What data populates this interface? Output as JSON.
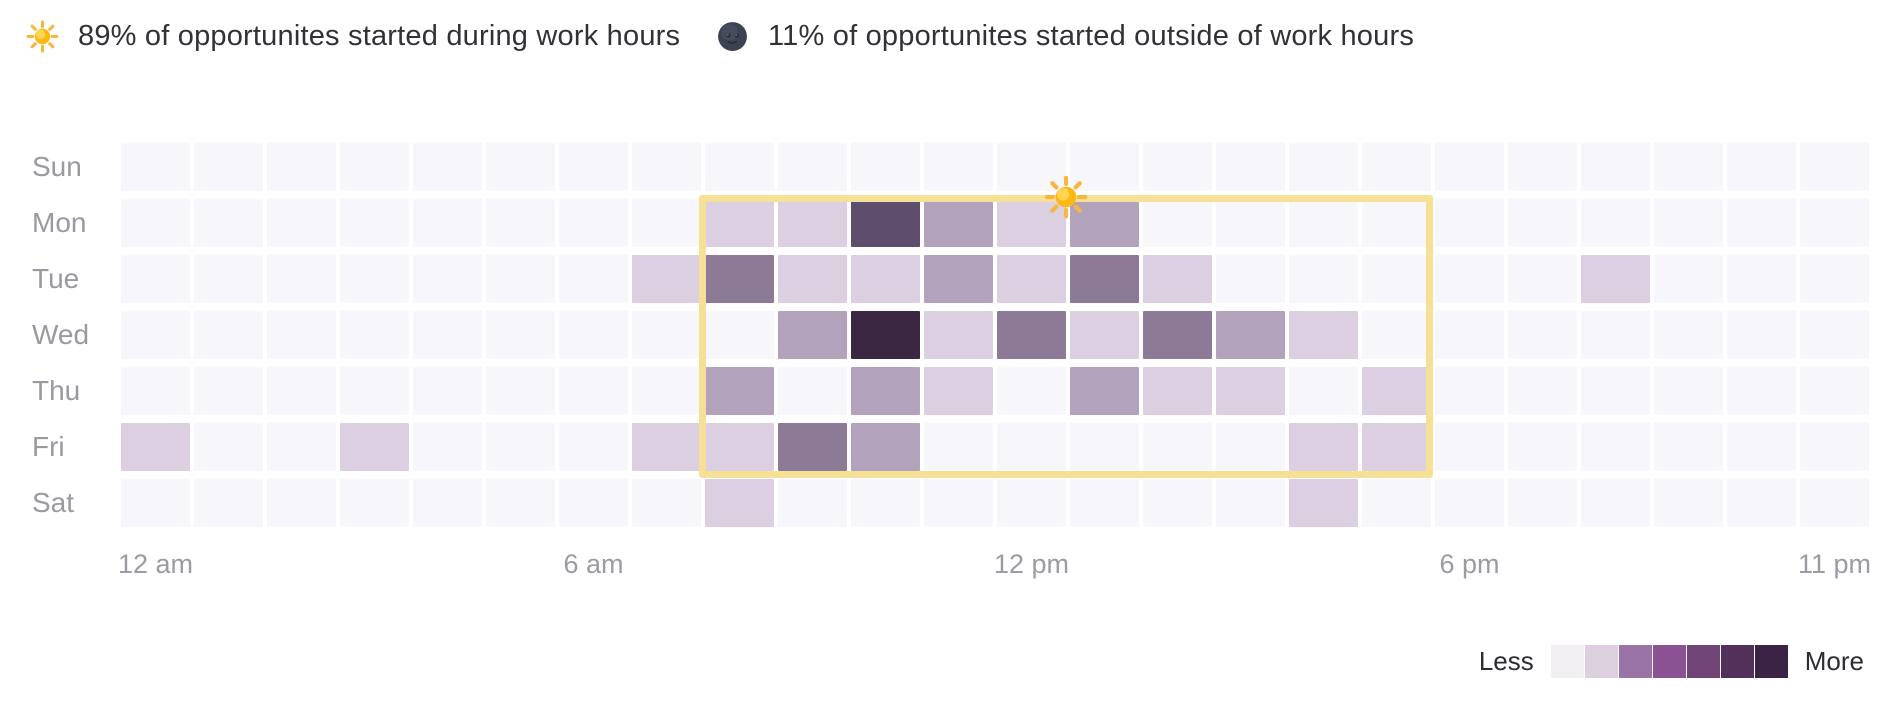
{
  "header": {
    "work_hours_stat": {
      "icon": "sun-icon",
      "text": "89% of opportunites started during work hours"
    },
    "outside_hours_stat": {
      "icon": "moon-icon",
      "text": "11% of opportunites started outside of work hours"
    }
  },
  "chart_data": {
    "type": "heatmap",
    "x_unit": "hour_of_day",
    "x_range": [
      0,
      23
    ],
    "categories_y": [
      "Sun",
      "Mon",
      "Tue",
      "Wed",
      "Thu",
      "Fri",
      "Sat"
    ],
    "x_tick_labels": [
      {
        "label": "12 am",
        "hour": 0
      },
      {
        "label": "6 am",
        "hour": 6
      },
      {
        "label": "12 pm",
        "hour": 12
      },
      {
        "label": "6 pm",
        "hour": 18
      },
      {
        "label": "11 pm",
        "hour": 23
      }
    ],
    "level_colors": [
      "#f7f7fb",
      "#dbcfe1",
      "#b2a2bb",
      "#8d7a96",
      "#5e4d6b",
      "#3b2742"
    ],
    "series": [
      {
        "name": "Sun",
        "values": [
          0,
          0,
          0,
          0,
          0,
          0,
          0,
          0,
          0,
          0,
          0,
          0,
          0,
          0,
          0,
          0,
          0,
          0,
          0,
          0,
          0,
          0,
          0,
          0
        ]
      },
      {
        "name": "Mon",
        "values": [
          0,
          0,
          0,
          0,
          0,
          0,
          0,
          0,
          1,
          1,
          4,
          2,
          1,
          2,
          0,
          0,
          0,
          0,
          0,
          0,
          0,
          0,
          0,
          0
        ]
      },
      {
        "name": "Tue",
        "values": [
          0,
          0,
          0,
          0,
          0,
          0,
          0,
          1,
          3,
          1,
          1,
          2,
          1,
          3,
          1,
          0,
          0,
          0,
          0,
          0,
          1,
          0,
          0,
          0
        ]
      },
      {
        "name": "Wed",
        "values": [
          0,
          0,
          0,
          0,
          0,
          0,
          0,
          0,
          0,
          2,
          5,
          1,
          3,
          1,
          3,
          2,
          1,
          0,
          0,
          0,
          0,
          0,
          0,
          0
        ]
      },
      {
        "name": "Thu",
        "values": [
          0,
          0,
          0,
          0,
          0,
          0,
          0,
          0,
          2,
          0,
          2,
          1,
          0,
          2,
          1,
          1,
          0,
          1,
          0,
          0,
          0,
          0,
          0,
          0
        ]
      },
      {
        "name": "Fri",
        "values": [
          1,
          0,
          0,
          1,
          0,
          0,
          0,
          1,
          1,
          3,
          2,
          0,
          0,
          0,
          0,
          0,
          1,
          1,
          0,
          0,
          0,
          0,
          0,
          0
        ]
      },
      {
        "name": "Sat",
        "values": [
          0,
          0,
          0,
          0,
          0,
          0,
          0,
          0,
          1,
          0,
          0,
          0,
          0,
          0,
          0,
          0,
          1,
          0,
          0,
          0,
          0,
          0,
          0,
          0
        ]
      }
    ],
    "work_hours_overlay": {
      "day_start": "Mon",
      "day_end": "Fri",
      "start_hour": 8,
      "end_hour": 18,
      "border_color": "#f5e096",
      "marker_icon": "sun-icon"
    }
  },
  "legend": {
    "less_label": "Less",
    "more_label": "More",
    "swatches": [
      "#f1eff2",
      "#dcd0de",
      "#9973a5",
      "#8b5293",
      "#714478",
      "#533059",
      "#3b2343"
    ]
  }
}
